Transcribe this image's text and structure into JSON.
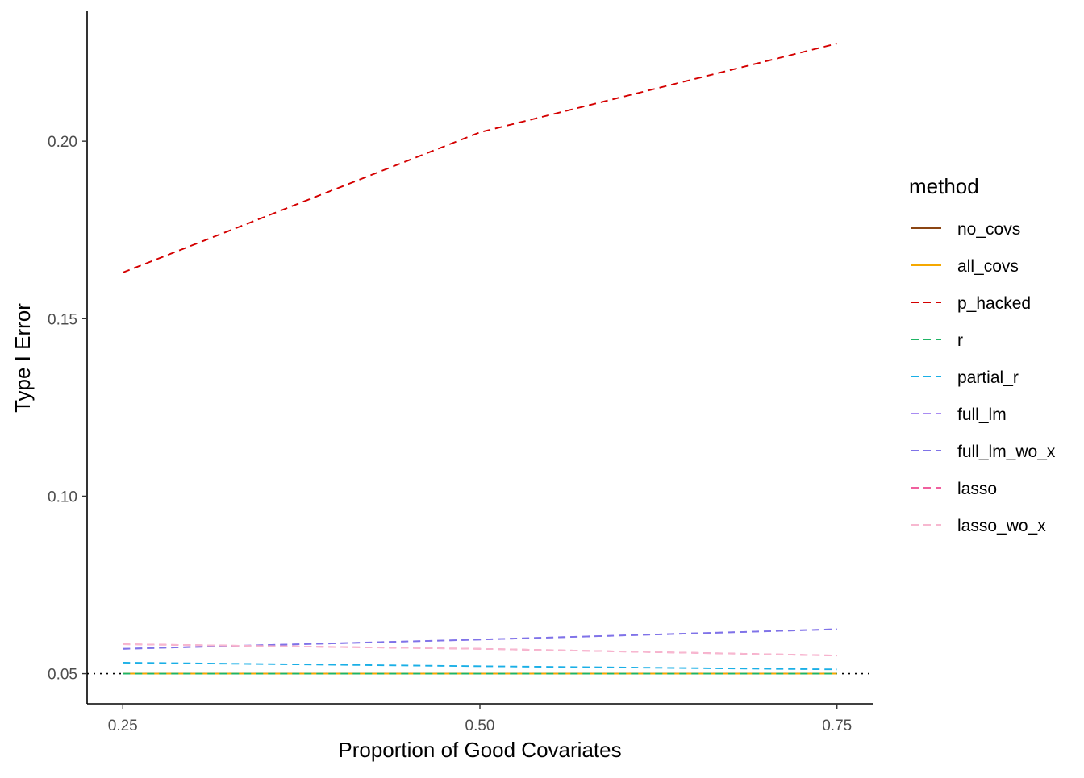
{
  "chart_data": {
    "type": "line",
    "title": "",
    "xlabel": "Proportion of Good Covariates",
    "ylabel": "Type I Error",
    "x": [
      0.25,
      0.5,
      0.75
    ],
    "x_tick_labels": [
      "0.25",
      "0.50",
      "0.75"
    ],
    "y_ticks": [
      0.05,
      0.1,
      0.15,
      0.2
    ],
    "y_tick_labels": [
      "0.05",
      "0.10",
      "0.15",
      "0.20"
    ],
    "xlim": [
      0.225,
      0.775
    ],
    "ylim": [
      0.0415,
      0.2366
    ],
    "grid": false,
    "reference_line": {
      "y": 0.05,
      "style": "dotted",
      "color": "#000000"
    },
    "legend": {
      "title": "method",
      "position": "right"
    },
    "series": [
      {
        "name": "no_covs",
        "values": [
          0.05,
          0.05,
          0.05
        ],
        "color": "#8B4513",
        "dash": "solid"
      },
      {
        "name": "all_covs",
        "values": [
          0.05,
          0.05,
          0.05
        ],
        "color": "#F5A800",
        "dash": "solid"
      },
      {
        "name": "p_hacked",
        "values": [
          0.163,
          0.2025,
          0.2275
        ],
        "color": "#D40000",
        "dash": "dashed"
      },
      {
        "name": "r",
        "values": [
          0.05,
          0.05,
          0.05
        ],
        "color": "#1FB464",
        "dash": "dashed"
      },
      {
        "name": "partial_r",
        "values": [
          0.0531,
          0.0521,
          0.0512
        ],
        "color": "#1AAFE6",
        "dash": "dashed"
      },
      {
        "name": "full_lm",
        "values": [
          0.057,
          0.0596,
          0.0625
        ],
        "color": "#A98CF2",
        "dash": "dashed"
      },
      {
        "name": "full_lm_wo_x",
        "values": [
          0.057,
          0.0596,
          0.0625
        ],
        "color": "#7F73E8",
        "dash": "dashed"
      },
      {
        "name": "lasso",
        "values": [
          0.0583,
          0.057,
          0.0551
        ],
        "color": "#F0609E",
        "dash": "dashed"
      },
      {
        "name": "lasso_wo_x",
        "values": [
          0.0583,
          0.057,
          0.0551
        ],
        "color": "#F7B8D0",
        "dash": "dashed"
      }
    ]
  }
}
